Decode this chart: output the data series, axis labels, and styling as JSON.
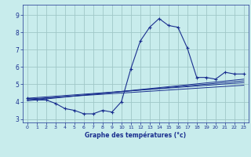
{
  "xlabel": "Graphe des températures (°c)",
  "bg_color": "#c8ecec",
  "grid_color": "#a0c8c8",
  "line_color": "#1a2f8f",
  "xlim": [
    -0.5,
    23.5
  ],
  "ylim": [
    2.8,
    9.6
  ],
  "yticks": [
    3,
    4,
    5,
    6,
    7,
    8,
    9
  ],
  "xticks": [
    0,
    1,
    2,
    3,
    4,
    5,
    6,
    7,
    8,
    9,
    10,
    11,
    12,
    13,
    14,
    15,
    16,
    17,
    18,
    19,
    20,
    21,
    22,
    23
  ],
  "series_main": {
    "x": [
      0,
      1,
      2,
      3,
      4,
      5,
      6,
      7,
      8,
      9,
      10,
      11,
      12,
      13,
      14,
      15,
      16,
      17,
      18,
      19,
      20,
      21,
      22,
      23
    ],
    "y": [
      4.2,
      4.1,
      4.1,
      3.9,
      3.6,
      3.5,
      3.3,
      3.3,
      3.5,
      3.4,
      4.0,
      5.9,
      7.5,
      8.3,
      8.8,
      8.4,
      8.3,
      7.1,
      5.4,
      5.4,
      5.3,
      5.7,
      5.6,
      5.6
    ]
  },
  "series_linear": [
    {
      "x": [
        0,
        23
      ],
      "y": [
        4.15,
        4.95
      ]
    },
    {
      "x": [
        0,
        23
      ],
      "y": [
        4.2,
        5.1
      ]
    },
    {
      "x": [
        0,
        23
      ],
      "y": [
        4.1,
        5.2
      ]
    },
    {
      "x": [
        0,
        23
      ],
      "y": [
        4.05,
        5.3
      ]
    }
  ]
}
